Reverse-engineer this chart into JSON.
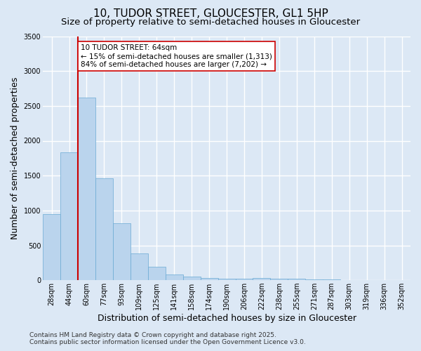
{
  "title": "10, TUDOR STREET, GLOUCESTER, GL1 5HP",
  "subtitle": "Size of property relative to semi-detached houses in Gloucester",
  "xlabel": "Distribution of semi-detached houses by size in Gloucester",
  "ylabel": "Number of semi-detached properties",
  "categories": [
    "28sqm",
    "44sqm",
    "60sqm",
    "77sqm",
    "93sqm",
    "109sqm",
    "125sqm",
    "141sqm",
    "158sqm",
    "174sqm",
    "190sqm",
    "206sqm",
    "222sqm",
    "238sqm",
    "255sqm",
    "271sqm",
    "287sqm",
    "303sqm",
    "319sqm",
    "336sqm",
    "352sqm"
  ],
  "values": [
    950,
    1830,
    2620,
    1460,
    820,
    380,
    195,
    85,
    50,
    30,
    25,
    20,
    30,
    25,
    20,
    10,
    15,
    5,
    5,
    2,
    2
  ],
  "bar_color": "#bad4ed",
  "bar_edge_color": "#6aaad4",
  "vline_bin_index": 2,
  "vline_color": "#cc0000",
  "annotation_text": "10 TUDOR STREET: 64sqm\n← 15% of semi-detached houses are smaller (1,313)\n84% of semi-detached houses are larger (7,202) →",
  "annotation_box_color": "#ffffff",
  "annotation_box_edge": "#cc0000",
  "ylim": [
    0,
    3500
  ],
  "yticks": [
    0,
    500,
    1000,
    1500,
    2000,
    2500,
    3000,
    3500
  ],
  "footer_line1": "Contains HM Land Registry data © Crown copyright and database right 2025.",
  "footer_line2": "Contains public sector information licensed under the Open Government Licence v3.0.",
  "bg_color": "#dce8f5",
  "plot_bg_color": "#dce8f5",
  "grid_color": "#ffffff",
  "title_fontsize": 11,
  "subtitle_fontsize": 9.5,
  "axis_label_fontsize": 9,
  "tick_fontsize": 7,
  "annotation_fontsize": 7.5,
  "footer_fontsize": 6.5
}
